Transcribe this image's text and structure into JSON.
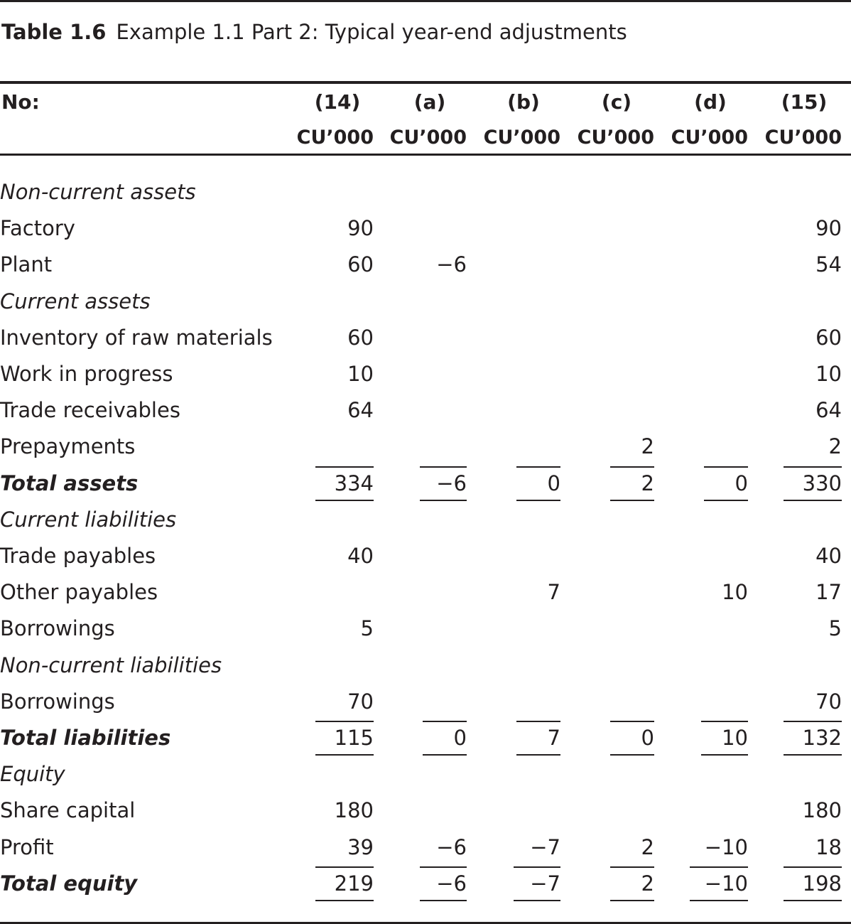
{
  "caption": {
    "number": "Table 1.6",
    "text": "Example 1.1 Part 2: Typical year-end adjustments"
  },
  "header": {
    "row_label": "No:",
    "columns": [
      {
        "label": "(14)",
        "unit": "CU’000"
      },
      {
        "label": "(a)",
        "unit": "CU’000"
      },
      {
        "label": "(b)",
        "unit": "CU’000"
      },
      {
        "label": "(c)",
        "unit": "CU’000"
      },
      {
        "label": "(d)",
        "unit": "CU’000"
      },
      {
        "label": "(15)",
        "unit": "CU’000"
      }
    ]
  },
  "rows": [
    {
      "label": "Non-current assets",
      "style": "section",
      "values": [
        "",
        "",
        "",
        "",
        "",
        ""
      ]
    },
    {
      "label": "Factory",
      "style": "item",
      "values": [
        "90",
        "",
        "",
        "",
        "",
        "90"
      ]
    },
    {
      "label": "Plant",
      "style": "item",
      "values": [
        "60",
        "−6",
        "",
        "",
        "",
        "54"
      ]
    },
    {
      "label": "Current assets",
      "style": "section",
      "values": [
        "",
        "",
        "",
        "",
        "",
        ""
      ]
    },
    {
      "label": "Inventory of raw materials",
      "style": "item",
      "values": [
        "60",
        "",
        "",
        "",
        "",
        "60"
      ]
    },
    {
      "label": "Work in progress",
      "style": "item",
      "values": [
        "10",
        "",
        "",
        "",
        "",
        "10"
      ]
    },
    {
      "label": "Trade receivables",
      "style": "item",
      "values": [
        "64",
        "",
        "",
        "",
        "",
        "64"
      ]
    },
    {
      "label": "Prepayments",
      "style": "item",
      "values": [
        "",
        "",
        "",
        "2",
        "",
        "2"
      ]
    },
    {
      "label": "Total assets",
      "style": "total",
      "values": [
        "334",
        "−6",
        "0",
        "2",
        "0",
        "330"
      ]
    },
    {
      "label": "Current liabilities",
      "style": "section",
      "values": [
        "",
        "",
        "",
        "",
        "",
        ""
      ]
    },
    {
      "label": "Trade payables",
      "style": "item",
      "values": [
        "40",
        "",
        "",
        "",
        "",
        "40"
      ]
    },
    {
      "label": "Other payables",
      "style": "item",
      "values": [
        "",
        "",
        "7",
        "",
        "10",
        "17"
      ]
    },
    {
      "label": "Borrowings",
      "style": "item",
      "values": [
        "5",
        "",
        "",
        "",
        "",
        "5"
      ]
    },
    {
      "label": "Non-current liabilities",
      "style": "section",
      "values": [
        "",
        "",
        "",
        "",
        "",
        ""
      ]
    },
    {
      "label": "Borrowings",
      "style": "item",
      "values": [
        "70",
        "",
        "",
        "",
        "",
        "70"
      ]
    },
    {
      "label": "Total liabilities",
      "style": "total",
      "values": [
        "115",
        "0",
        "7",
        "0",
        "10",
        "132"
      ]
    },
    {
      "label": "Equity",
      "style": "section",
      "values": [
        "",
        "",
        "",
        "",
        "",
        ""
      ]
    },
    {
      "label": "Share capital",
      "style": "item",
      "values": [
        "180",
        "",
        "",
        "",
        "",
        "180"
      ]
    },
    {
      "label": "Profit",
      "style": "item",
      "values": [
        "39",
        "−6",
        "−7",
        "2",
        "−10",
        "18"
      ]
    },
    {
      "label": "Total equity",
      "style": "total",
      "values": [
        "219",
        "−6",
        "−7",
        "2",
        "−10",
        "198"
      ]
    }
  ]
}
